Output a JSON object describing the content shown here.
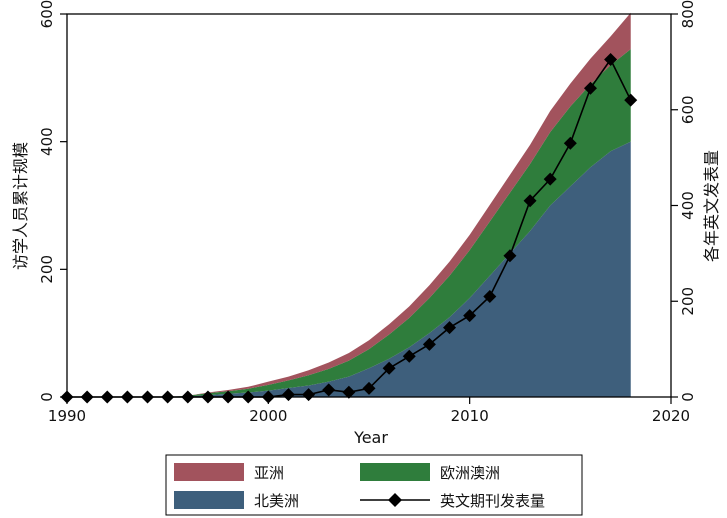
{
  "chart_data": {
    "type": "area",
    "x": [
      1990,
      1991,
      1992,
      1993,
      1994,
      1995,
      1996,
      1997,
      1998,
      1999,
      2000,
      2001,
      2002,
      2003,
      2004,
      2005,
      2006,
      2007,
      2008,
      2009,
      2010,
      2011,
      2012,
      2013,
      2014,
      2015,
      2016,
      2017,
      2018
    ],
    "xlabel": "Year",
    "ylabel": "访学人员累计规模",
    "y2label": "各年英文发表量",
    "xlim": [
      1990,
      2020
    ],
    "ylim": [
      0,
      600
    ],
    "y2lim": [
      0,
      800
    ],
    "xticks": [
      "1990",
      "2000",
      "2010",
      "2020"
    ],
    "yticks": [
      "0",
      "200",
      "400",
      "600"
    ],
    "y2ticks": [
      "0",
      "200",
      "400",
      "600",
      "800"
    ],
    "legend_position": "bottom",
    "grid": false,
    "series": [
      {
        "name": "北美洲",
        "axis": "left",
        "stack": true,
        "color": "#3e5f7c",
        "values": [
          0,
          0,
          0,
          0,
          0,
          0,
          1,
          3,
          5,
          7,
          10,
          14,
          18,
          24,
          32,
          45,
          60,
          78,
          100,
          125,
          155,
          190,
          225,
          260,
          300,
          330,
          360,
          385,
          400
        ]
      },
      {
        "name": "欧洲澳洲",
        "axis": "left",
        "stack": true,
        "color": "#2f7d3c",
        "values": [
          0,
          0,
          0,
          0,
          0,
          0,
          1,
          3,
          4,
          6,
          9,
          12,
          16,
          20,
          25,
          30,
          38,
          46,
          55,
          65,
          75,
          85,
          95,
          105,
          115,
          125,
          130,
          135,
          145
        ]
      },
      {
        "name": "亚洲",
        "axis": "left",
        "stack": true,
        "color": "#a2535d",
        "values": [
          0,
          0,
          0,
          0,
          0,
          0,
          0,
          1,
          2,
          3,
          5,
          6,
          8,
          10,
          12,
          14,
          16,
          18,
          20,
          22,
          24,
          26,
          28,
          30,
          33,
          36,
          40,
          45,
          57
        ]
      },
      {
        "name": "英文期刊发表量",
        "axis": "right",
        "type": "line",
        "marker": "diamond",
        "color": "#000000",
        "values": [
          0,
          0,
          0,
          0,
          0,
          0,
          0,
          0,
          0,
          0,
          0,
          5,
          5,
          15,
          10,
          18,
          60,
          85,
          110,
          145,
          170,
          210,
          295,
          410,
          455,
          530,
          645,
          705,
          620
        ]
      }
    ]
  }
}
